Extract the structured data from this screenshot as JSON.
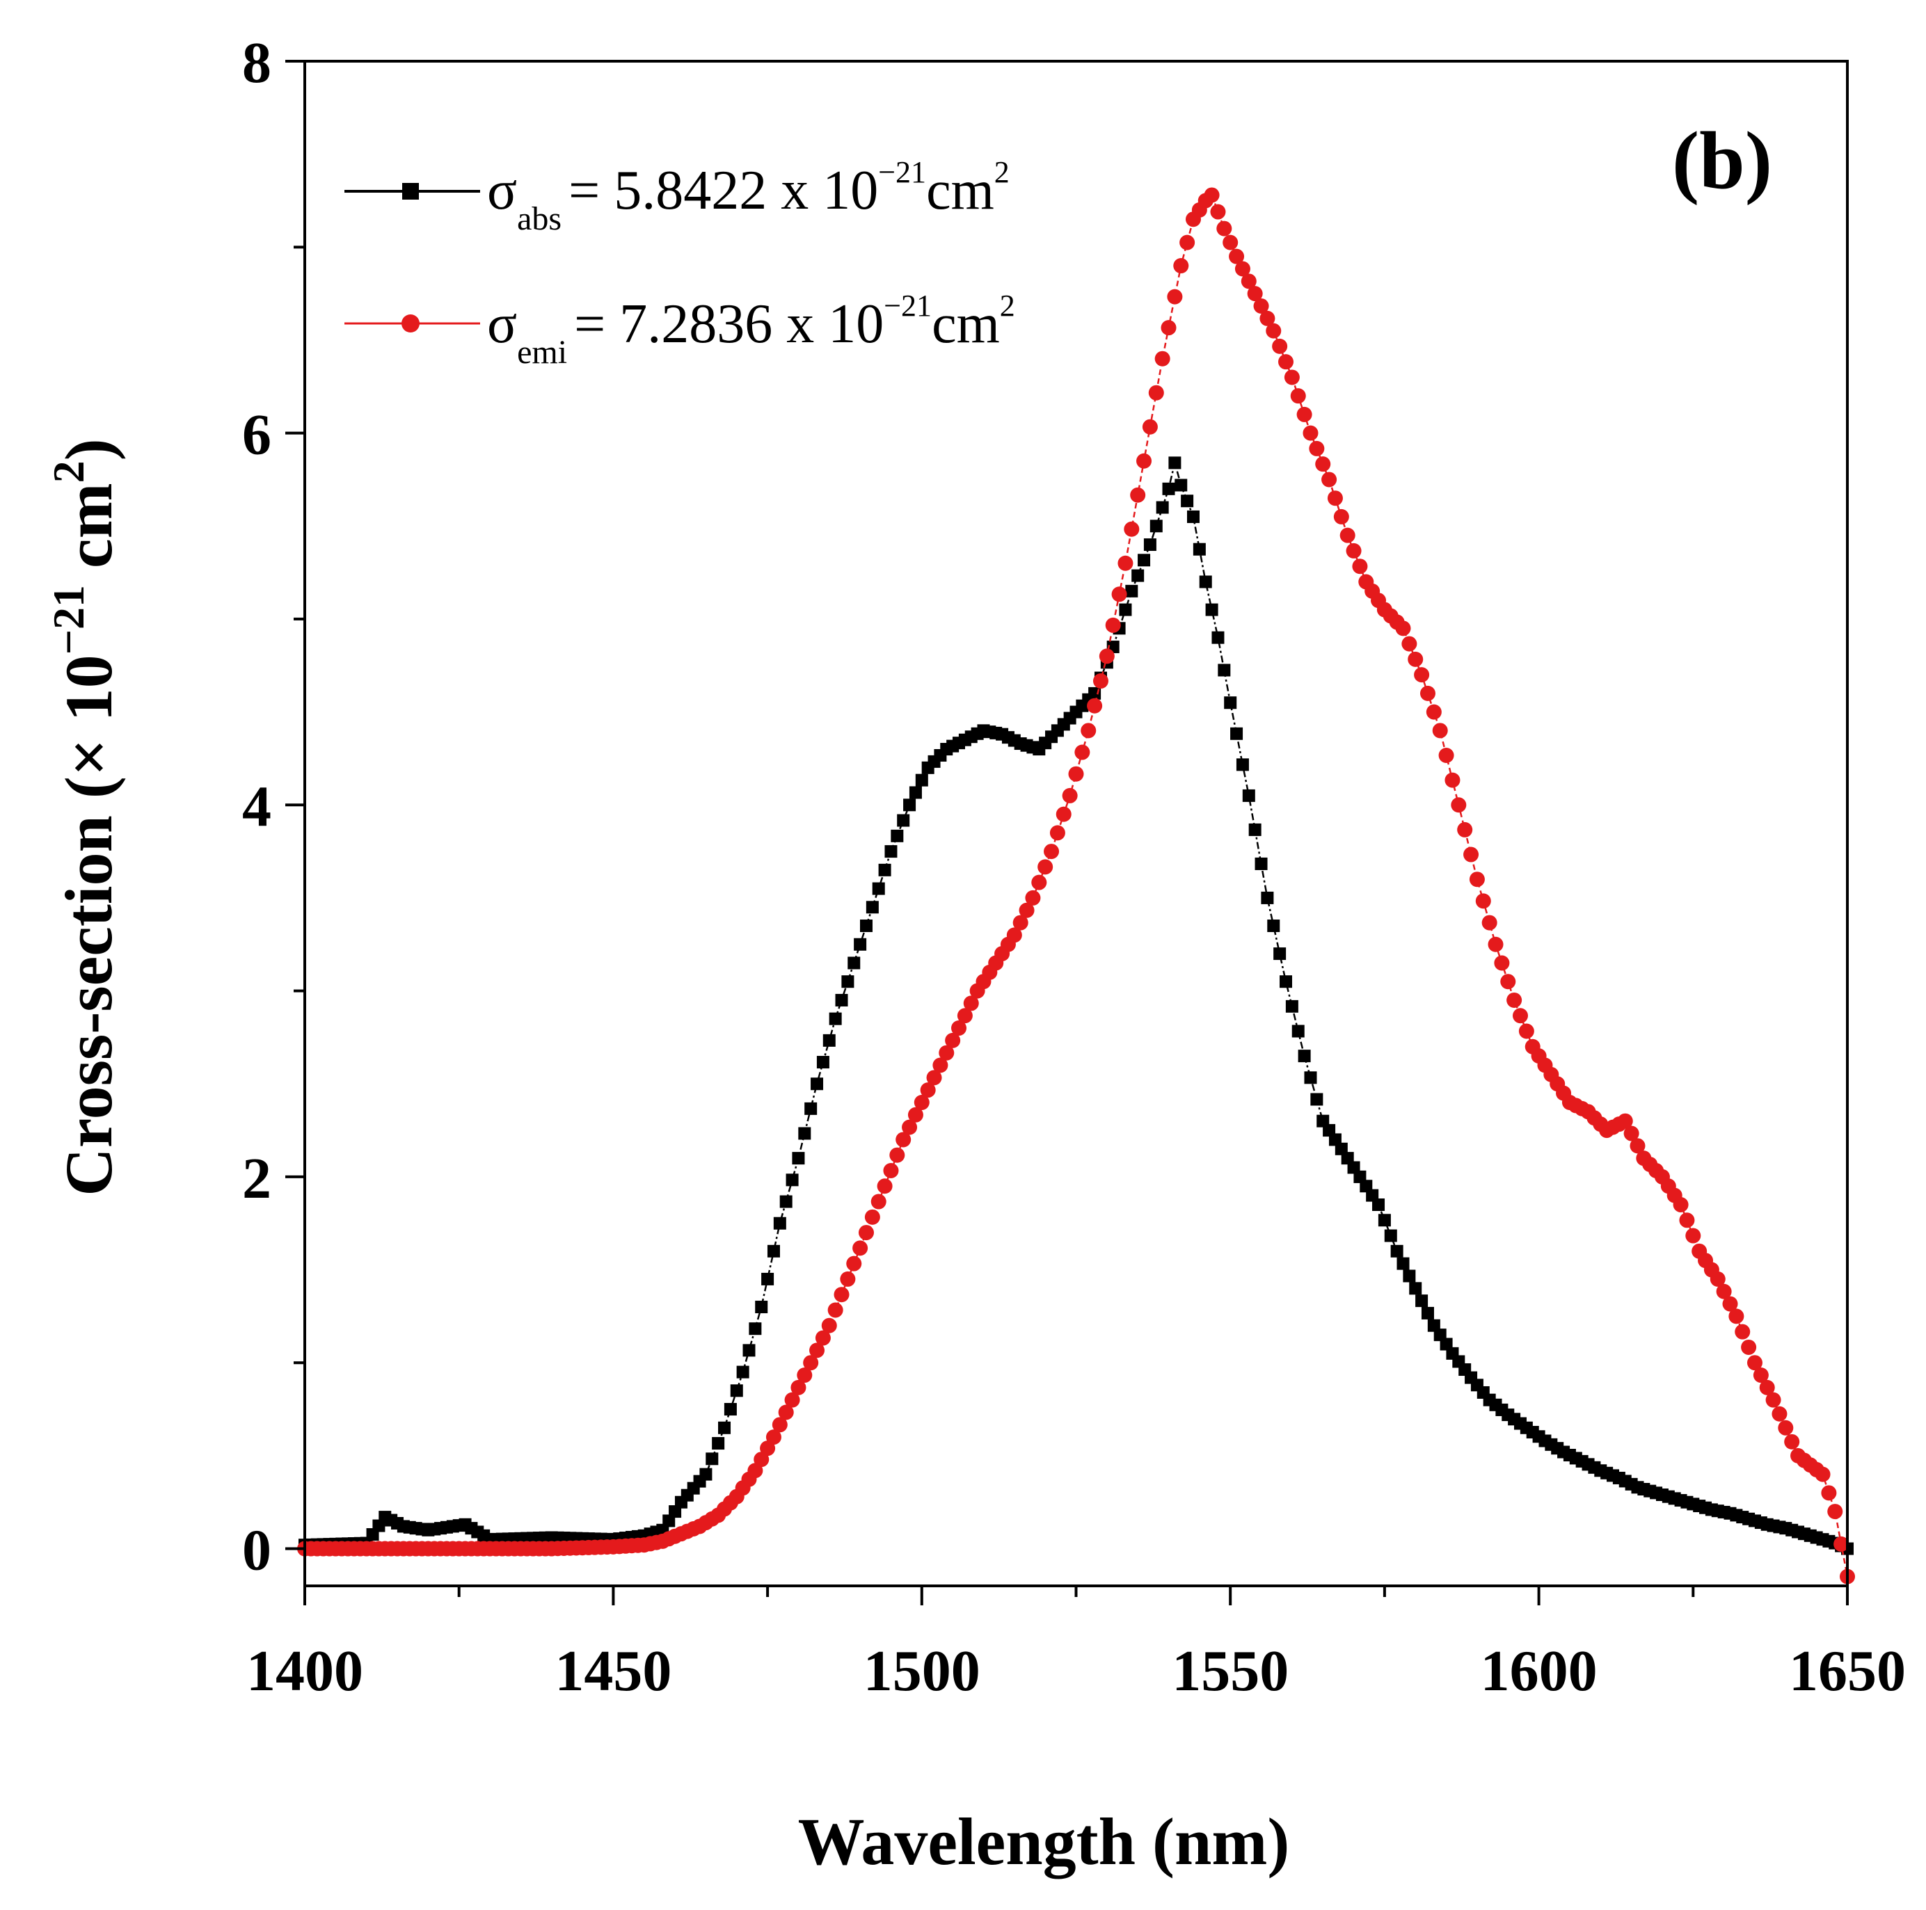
{
  "chart_data": {
    "type": "line",
    "title": "",
    "panel_label": "(b)",
    "xlabel": "Wavelength (nm)",
    "ylabel": {
      "main": "Cross-section (× 10",
      "exp": "−21",
      "unit": " cm",
      "unit_exp": "2",
      "close": ")"
    },
    "xlim": [
      1400,
      1650
    ],
    "ylim": [
      -0.2,
      8
    ],
    "xticks": [
      1400,
      1450,
      1500,
      1550,
      1600,
      1650
    ],
    "xtick_labels": [
      "1400",
      "1450",
      "1500",
      "1550",
      "1600",
      "1650"
    ],
    "yticks": [
      0,
      2,
      4,
      6,
      8
    ],
    "ytick_labels": [
      "0",
      "2",
      "4",
      "6",
      "8"
    ],
    "legend_position": "top-left",
    "series": [
      {
        "name": "σabs = 5.8422 x 10−21cm2",
        "legend": {
          "sym": "σ",
          "sub": "abs",
          "mid": "= 5.8422 x 10",
          "exp": "−21",
          "unit": "cm",
          "unit_exp": "2"
        },
        "color": "#000000",
        "marker": "square",
        "x": [
          1400,
          1410,
          1413,
          1416,
          1420,
          1426,
          1430,
          1440,
          1450,
          1455,
          1458,
          1461,
          1465,
          1468,
          1471,
          1474,
          1477,
          1480,
          1483,
          1486,
          1489,
          1492,
          1495,
          1498,
          1501,
          1504,
          1507,
          1510,
          1513,
          1516,
          1519,
          1522,
          1525,
          1528,
          1531,
          1534,
          1537,
          1540,
          1541,
          1542,
          1544,
          1546,
          1548,
          1550,
          1553,
          1556,
          1559,
          1562,
          1565,
          1568,
          1571,
          1574,
          1577,
          1580,
          1583,
          1586,
          1589,
          1592,
          1595,
          1598,
          1601,
          1604,
          1607,
          1610,
          1613,
          1616,
          1619,
          1622,
          1625,
          1628,
          1631,
          1634,
          1637,
          1640,
          1643,
          1646,
          1648,
          1650
        ],
        "y": [
          0.02,
          0.03,
          0.17,
          0.12,
          0.1,
          0.13,
          0.05,
          0.06,
          0.05,
          0.07,
          0.1,
          0.25,
          0.4,
          0.65,
          0.95,
          1.3,
          1.75,
          2.1,
          2.5,
          2.85,
          3.15,
          3.45,
          3.75,
          4.0,
          4.2,
          4.3,
          4.35,
          4.4,
          4.38,
          4.33,
          4.3,
          4.4,
          4.5,
          4.6,
          4.85,
          5.15,
          5.4,
          5.7,
          5.84,
          5.72,
          5.55,
          5.2,
          4.9,
          4.55,
          4.05,
          3.5,
          3.05,
          2.65,
          2.3,
          2.15,
          2.0,
          1.85,
          1.6,
          1.4,
          1.2,
          1.05,
          0.92,
          0.8,
          0.72,
          0.65,
          0.58,
          0.52,
          0.47,
          0.42,
          0.38,
          0.33,
          0.3,
          0.27,
          0.24,
          0.21,
          0.19,
          0.16,
          0.13,
          0.11,
          0.08,
          0.05,
          0.03,
          0.0
        ]
      },
      {
        "name": "σemi = 7.2836 x 10−21cm2",
        "legend": {
          "sym": "σ",
          "sub": "emi",
          "mid": "= 7.2836 x 10",
          "exp": "−21",
          "unit": "cm",
          "unit_exp": "2"
        },
        "color": "#e41a1c",
        "marker": "circle",
        "x": [
          1400,
          1410,
          1420,
          1430,
          1440,
          1450,
          1455,
          1458,
          1461,
          1464,
          1467,
          1470,
          1473,
          1476,
          1479,
          1482,
          1485,
          1488,
          1491,
          1494,
          1497,
          1500,
          1503,
          1506,
          1509,
          1512,
          1515,
          1518,
          1521,
          1524,
          1527,
          1530,
          1533,
          1536,
          1539,
          1542,
          1544,
          1546,
          1547,
          1549,
          1551,
          1554,
          1557,
          1560,
          1563,
          1566,
          1569,
          1572,
          1575,
          1578,
          1581,
          1584,
          1587,
          1590,
          1593,
          1596,
          1599,
          1602,
          1605,
          1608,
          1611,
          1614,
          1617,
          1620,
          1623,
          1626,
          1629,
          1632,
          1635,
          1638,
          1640,
          1642,
          1644,
          1646,
          1648,
          1650
        ],
        "y": [
          0.0,
          0.0,
          0.0,
          0.0,
          0.0,
          0.01,
          0.02,
          0.04,
          0.08,
          0.12,
          0.18,
          0.28,
          0.42,
          0.6,
          0.8,
          1.0,
          1.2,
          1.45,
          1.7,
          1.95,
          2.2,
          2.4,
          2.6,
          2.8,
          3.0,
          3.15,
          3.3,
          3.5,
          3.75,
          4.05,
          4.4,
          4.8,
          5.3,
          5.85,
          6.4,
          6.9,
          7.15,
          7.25,
          7.28,
          7.1,
          6.95,
          6.75,
          6.55,
          6.3,
          6.0,
          5.75,
          5.45,
          5.2,
          5.05,
          4.95,
          4.7,
          4.4,
          4.0,
          3.6,
          3.25,
          2.95,
          2.7,
          2.55,
          2.4,
          2.35,
          2.25,
          2.3,
          2.1,
          2.0,
          1.85,
          1.6,
          1.45,
          1.25,
          1.0,
          0.8,
          0.65,
          0.5,
          0.45,
          0.4,
          0.2,
          -0.15
        ]
      }
    ]
  }
}
